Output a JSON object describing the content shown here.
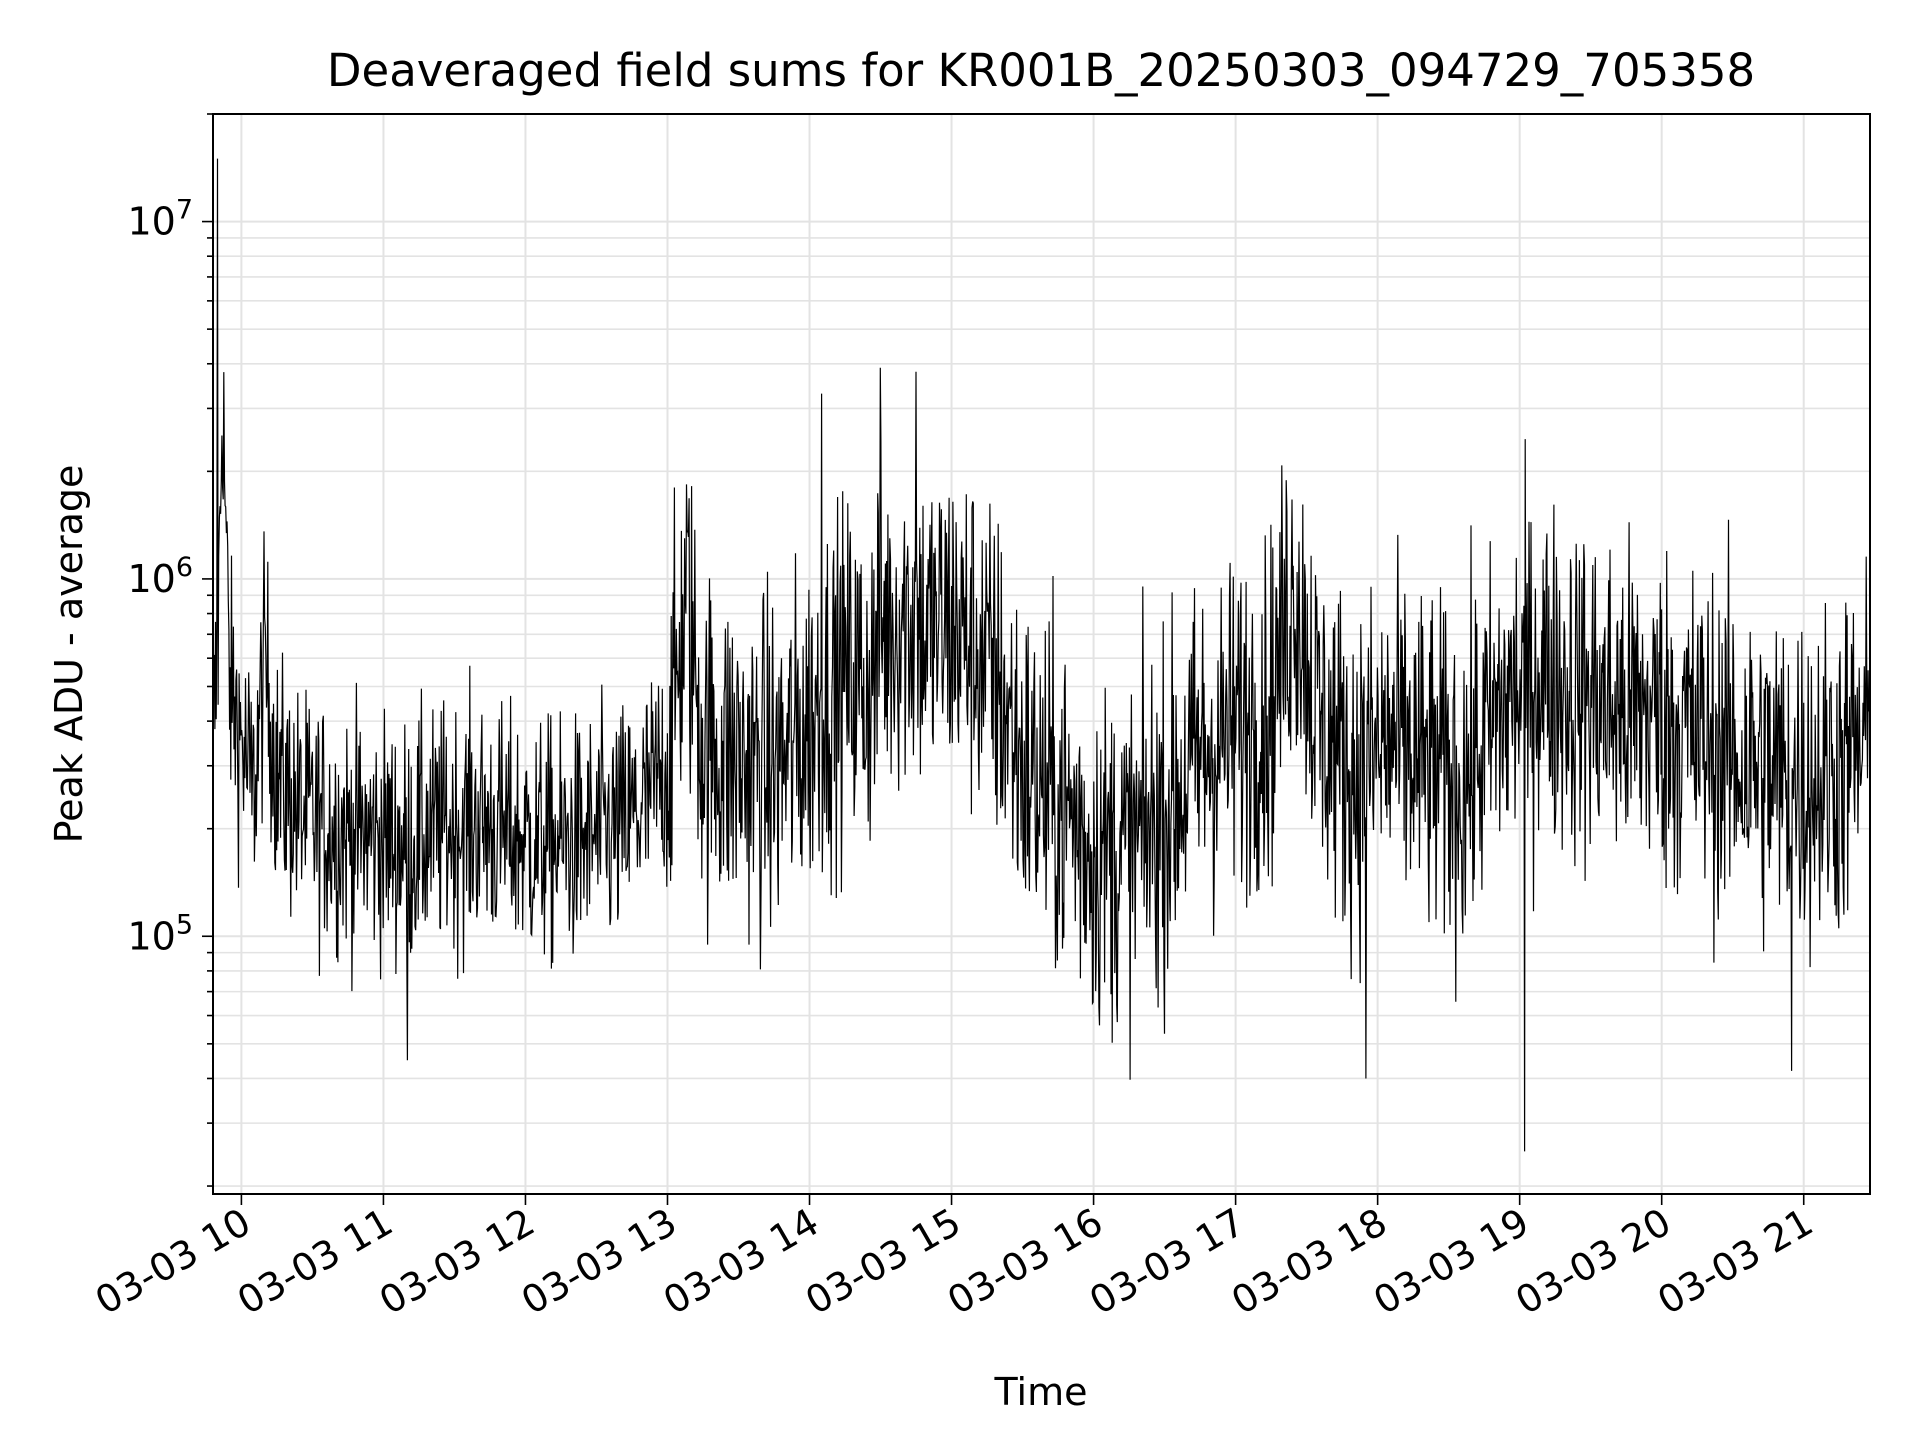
{
  "chart_data": {
    "type": "line",
    "title": "Deaveraged field sums for KR001B_20250303_094729_705358",
    "xlabel": "Time",
    "ylabel": "Peak ADU - average",
    "yscale": "log",
    "ylim": [
      19000,
      20000000
    ],
    "xlim": [
      "2025-03-03 09:48",
      "2025-03-03 21:28"
    ],
    "grid": true,
    "x_ticks": [
      "2025-03-03 10:00",
      "2025-03-03 11:00",
      "2025-03-03 12:00",
      "2025-03-03 13:00",
      "2025-03-03 14:00",
      "2025-03-03 15:00",
      "2025-03-03 16:00",
      "2025-03-03 17:00",
      "2025-03-03 18:00",
      "2025-03-03 19:00",
      "2025-03-03 20:00",
      "2025-03-03 21:00"
    ],
    "x_tick_labels": [
      "03-03 10",
      "03-03 11",
      "03-03 12",
      "03-03 13",
      "03-03 14",
      "03-03 15",
      "03-03 16",
      "03-03 17",
      "03-03 18",
      "03-03 19",
      "03-03 20",
      "03-03 21"
    ],
    "y_ticks": [
      {
        "value": 100000,
        "base": "10",
        "exp": "5"
      },
      {
        "value": 1000000,
        "base": "10",
        "exp": "6"
      },
      {
        "value": 10000000,
        "base": "10",
        "exp": "7"
      }
    ],
    "line_color": "#000000",
    "series": [
      {
        "x": [
          "2025-03-03 09:48",
          "2025-03-03 09:50",
          "2025-03-03 09:52",
          "2025-03-03 09:55",
          "2025-03-03 10:05",
          "2025-03-03 10:10",
          "2025-03-03 10:15",
          "2025-03-03 10:25",
          "2025-03-03 10:40",
          "2025-03-03 10:55",
          "2025-03-03 11:10",
          "2025-03-03 11:25",
          "2025-03-03 11:40",
          "2025-03-03 11:55",
          "2025-03-03 12:10",
          "2025-03-03 12:25",
          "2025-03-03 12:40",
          "2025-03-03 12:50",
          "2025-03-03 13:00",
          "2025-03-03 13:08",
          "2025-03-03 13:15",
          "2025-03-03 13:25",
          "2025-03-03 13:35",
          "2025-03-03 13:45",
          "2025-03-03 13:55",
          "2025-03-03 14:05",
          "2025-03-03 14:15",
          "2025-03-03 14:25",
          "2025-03-03 14:30",
          "2025-03-03 14:40",
          "2025-03-03 14:50",
          "2025-03-03 15:00",
          "2025-03-03 15:10",
          "2025-03-03 15:20",
          "2025-03-03 15:30",
          "2025-03-03 15:40",
          "2025-03-03 15:50",
          "2025-03-03 16:00",
          "2025-03-03 16:15",
          "2025-03-03 16:30",
          "2025-03-03 16:45",
          "2025-03-03 17:00",
          "2025-03-03 17:15",
          "2025-03-03 17:25",
          "2025-03-03 17:35",
          "2025-03-03 17:50",
          "2025-03-03 18:05",
          "2025-03-03 18:20",
          "2025-03-03 18:35",
          "2025-03-03 18:50",
          "2025-03-03 19:00",
          "2025-03-03 19:10",
          "2025-03-03 19:25",
          "2025-03-03 19:40",
          "2025-03-03 19:55",
          "2025-03-03 20:10",
          "2025-03-03 20:25",
          "2025-03-03 20:40",
          "2025-03-03 20:55",
          "2025-03-03 21:10",
          "2025-03-03 21:28"
        ],
        "y": [
          350000,
          600000,
          3500000,
          500000,
          250000,
          600000,
          280000,
          220000,
          200000,
          190000,
          180000,
          200000,
          210000,
          190000,
          180000,
          185000,
          200000,
          230000,
          300000,
          900000,
          350000,
          320000,
          300000,
          290000,
          350000,
          450000,
          550000,
          500000,
          700000,
          800000,
          700000,
          750000,
          650000,
          500000,
          300000,
          250000,
          220000,
          170000,
          170000,
          220000,
          320000,
          380000,
          450000,
          1000000,
          400000,
          280000,
          350000,
          300000,
          260000,
          400000,
          500000,
          550000,
          480000,
          430000,
          420000,
          380000,
          330000,
          300000,
          270000,
          280000,
          350000
        ]
      }
    ],
    "extremes": [
      {
        "x": "2025-03-03 09:50",
        "y": 15000000
      },
      {
        "x": "2025-03-03 14:30",
        "y": 3900000
      },
      {
        "x": "2025-03-03 14:45",
        "y": 3800000
      },
      {
        "x": "2025-03-03 14:05",
        "y": 3300000
      },
      {
        "x": "2025-03-03 11:10",
        "y": 45000
      },
      {
        "x": "2025-03-03 17:55",
        "y": 40000
      },
      {
        "x": "2025-03-03 19:02",
        "y": 25000
      },
      {
        "x": "2025-03-03 20:55",
        "y": 42000
      }
    ]
  }
}
